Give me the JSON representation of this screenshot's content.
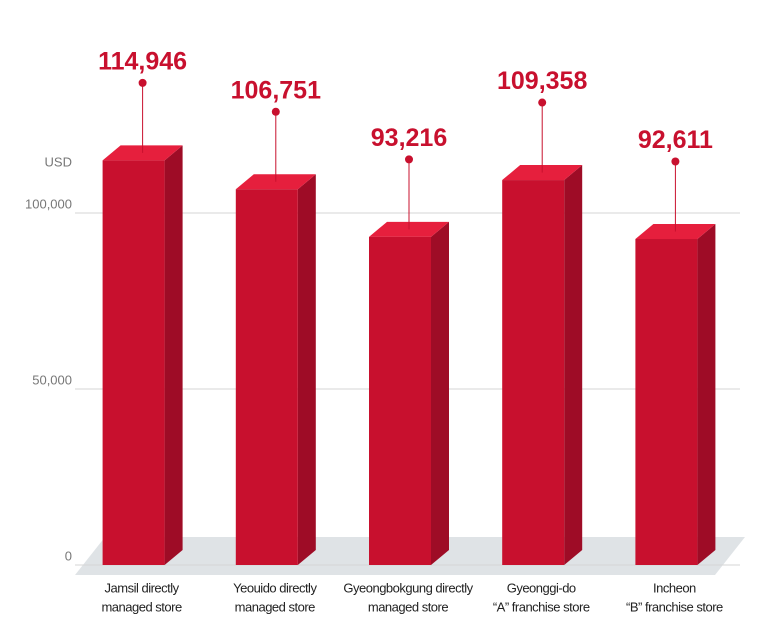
{
  "chart_data": {
    "type": "bar3d",
    "ylabel": "USD",
    "categories": [
      [
        "Jamsil directly",
        "managed store"
      ],
      [
        "Yeouido directly",
        "managed store"
      ],
      [
        "Gyeongbokgung directly",
        "managed store"
      ],
      [
        "Gyeonggi-do",
        "“A” franchise store"
      ],
      [
        "Incheon",
        "“B” franchise store"
      ]
    ],
    "values": [
      114946,
      106751,
      93216,
      109358,
      92611
    ],
    "value_labels": [
      "114,946",
      "106,751",
      "93,216",
      "109,358",
      "92,611"
    ],
    "color": "#c8102e",
    "ylim": [
      0,
      120000
    ],
    "yticks": [
      0,
      {
        "value": 50000,
        "label": "50,000"
      },
      {
        "value": 100000,
        "label": "100,000"
      }
    ],
    "grid": true
  }
}
